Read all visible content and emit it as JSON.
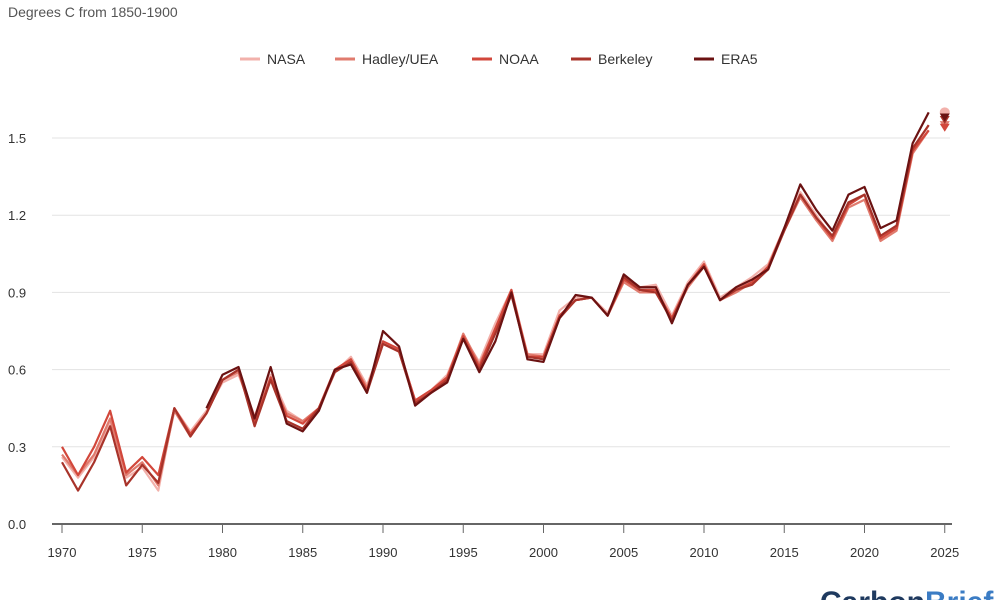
{
  "chart_data": {
    "type": "line",
    "subtitle": "Degrees C from 1850-1900",
    "xlim": [
      1970,
      2025
    ],
    "ylim": [
      0,
      1.6
    ],
    "xticks": [
      1970,
      1975,
      1980,
      1985,
      1990,
      1995,
      2000,
      2005,
      2010,
      2015,
      2020,
      2025
    ],
    "yticks": [
      "0.0",
      "0.3",
      "0.6",
      "0.9",
      "1.2",
      "1.5"
    ],
    "grid": true,
    "legend_position": "top-center",
    "series": [
      {
        "name": "NASA",
        "color": "#f2b1ab",
        "start": 1970,
        "values": [
          0.26,
          0.18,
          0.26,
          0.4,
          0.18,
          0.22,
          0.13,
          0.45,
          0.36,
          0.44,
          0.55,
          0.58,
          0.42,
          0.58,
          0.44,
          0.4,
          0.44,
          0.59,
          0.65,
          0.54,
          0.7,
          0.68,
          0.48,
          0.52,
          0.58,
          0.73,
          0.63,
          0.78,
          0.91,
          0.66,
          0.66,
          0.83,
          0.88,
          0.88,
          0.82,
          0.95,
          0.92,
          0.93,
          0.81,
          0.94,
          1.02,
          0.88,
          0.92,
          0.96,
          1.01,
          1.15,
          1.29,
          1.2,
          1.11,
          1.24,
          1.28,
          1.11,
          1.15,
          1.46,
          1.55
        ],
        "p2025": 1.6
      },
      {
        "name": "Hadley/UEA",
        "color": "#e07b6e",
        "start": 1970,
        "values": [
          0.27,
          0.19,
          0.27,
          0.41,
          0.19,
          0.24,
          0.15,
          0.44,
          0.34,
          0.43,
          0.56,
          0.59,
          0.4,
          0.56,
          0.43,
          0.4,
          0.45,
          0.6,
          0.64,
          0.53,
          0.7,
          0.67,
          0.48,
          0.52,
          0.57,
          0.74,
          0.62,
          0.76,
          0.9,
          0.66,
          0.65,
          0.81,
          0.87,
          0.88,
          0.81,
          0.94,
          0.9,
          0.9,
          0.8,
          0.92,
          1.0,
          0.87,
          0.9,
          0.94,
          1.0,
          1.14,
          1.27,
          1.18,
          1.1,
          1.23,
          1.26,
          1.1,
          1.14,
          1.44,
          1.53
        ],
        "p2025": 1.55
      },
      {
        "name": "NOAA",
        "color": "#d2473b",
        "start": 1970,
        "values": [
          0.3,
          0.19,
          0.3,
          0.44,
          0.2,
          0.26,
          0.19,
          0.45,
          0.35,
          0.43,
          0.56,
          0.6,
          0.39,
          0.57,
          0.42,
          0.39,
          0.45,
          0.6,
          0.64,
          0.52,
          0.71,
          0.68,
          0.48,
          0.52,
          0.57,
          0.73,
          0.61,
          0.76,
          0.91,
          0.65,
          0.65,
          0.81,
          0.87,
          0.88,
          0.81,
          0.95,
          0.91,
          0.91,
          0.8,
          0.93,
          1.01,
          0.87,
          0.91,
          0.94,
          1.0,
          1.15,
          1.28,
          1.19,
          1.11,
          1.24,
          1.28,
          1.11,
          1.15,
          1.45,
          1.53
        ],
        "p2025": 1.54
      },
      {
        "name": "Berkeley",
        "color": "#a8332a",
        "start": 1970,
        "values": [
          0.24,
          0.13,
          0.24,
          0.38,
          0.15,
          0.23,
          0.16,
          0.45,
          0.34,
          0.43,
          0.56,
          0.6,
          0.38,
          0.56,
          0.4,
          0.37,
          0.45,
          0.59,
          0.63,
          0.51,
          0.7,
          0.67,
          0.47,
          0.51,
          0.56,
          0.72,
          0.6,
          0.74,
          0.89,
          0.65,
          0.64,
          0.8,
          0.87,
          0.88,
          0.81,
          0.96,
          0.91,
          0.9,
          0.79,
          0.93,
          1.0,
          0.87,
          0.91,
          0.93,
          0.99,
          1.14,
          1.28,
          1.19,
          1.12,
          1.25,
          1.28,
          1.12,
          1.16,
          1.46,
          1.55
        ],
        "p2025": 1.57
      },
      {
        "name": "ERA5",
        "color": "#6b1212",
        "start": 1979,
        "values": [
          0.45,
          0.58,
          0.61,
          0.41,
          0.61,
          0.39,
          0.36,
          0.44,
          0.6,
          0.62,
          0.51,
          0.75,
          0.69,
          0.46,
          0.51,
          0.55,
          0.72,
          0.59,
          0.71,
          0.9,
          0.64,
          0.63,
          0.8,
          0.89,
          0.88,
          0.81,
          0.97,
          0.92,
          0.92,
          0.78,
          0.93,
          1.0,
          0.87,
          0.92,
          0.95,
          0.99,
          1.15,
          1.32,
          1.22,
          1.14,
          1.28,
          1.31,
          1.15,
          1.18,
          1.48,
          1.6
        ],
        "p2025": 1.58
      }
    ]
  },
  "logo": "CarbonBrief"
}
